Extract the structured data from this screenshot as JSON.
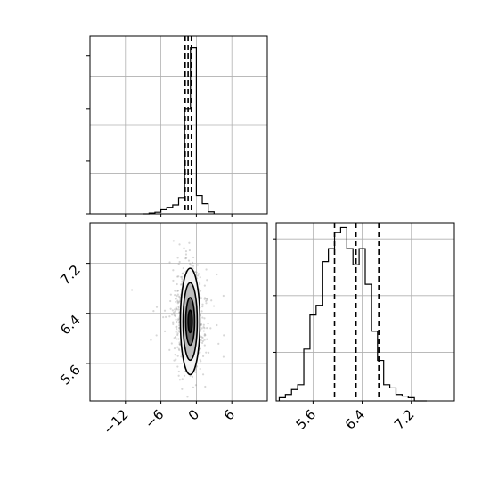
{
  "chart_data": [
    {
      "panel": "top-left",
      "type": "histogram",
      "title": "",
      "xlabel": "",
      "ylabel": "",
      "xlim": [
        -18,
        12
      ],
      "ylim": [
        0,
        0.44
      ],
      "shared_x_ticks": [
        -12,
        -6,
        0,
        6
      ],
      "tick_labels_shown": false,
      "grid": true,
      "bin_edges": [
        -9,
        -8,
        -7,
        -6,
        -5,
        -4,
        -3,
        -2,
        -1,
        0,
        1,
        2,
        3
      ],
      "values": [
        0.0,
        0.002,
        0.004,
        0.01,
        0.016,
        0.022,
        0.04,
        0.26,
        0.41,
        0.045,
        0.025,
        0.005
      ],
      "quantile_lines": [
        -1.9,
        -1.4,
        -0.85
      ],
      "line_color": "#000000"
    },
    {
      "panel": "bottom-left",
      "type": "scatter",
      "title": "",
      "xlabel": "",
      "ylabel": "",
      "xlim": [
        -18,
        12
      ],
      "ylim": [
        5.0,
        7.85
      ],
      "x_ticks": [
        "−12",
        "−6",
        "0",
        "6"
      ],
      "x_tick_values": [
        -12,
        -6,
        0,
        6
      ],
      "y_ticks": [
        "5.6",
        "6.4",
        "7.2"
      ],
      "y_tick_values": [
        5.6,
        6.4,
        7.2
      ],
      "grid": true,
      "center": [
        -1.2,
        6.3
      ],
      "spread": [
        1.1,
        0.37
      ],
      "point_color": "#8c8c8c",
      "contour_levels": [
        {
          "rx": 3.3,
          "ry": 0.85,
          "fill": "#f3f3f3"
        },
        {
          "rx": 2.4,
          "ry": 0.62,
          "fill": "#bdbdbd"
        },
        {
          "rx": 1.5,
          "ry": 0.38,
          "fill": "#6c6c6c"
        },
        {
          "rx": 0.7,
          "ry": 0.18,
          "fill": "#1c1c1c"
        }
      ]
    },
    {
      "panel": "bottom-right",
      "type": "histogram",
      "title": "",
      "xlabel": "",
      "ylabel": "",
      "xlim": [
        4.95,
        7.85
      ],
      "ylim": [
        0,
        0.11
      ],
      "x_ticks": [
        "5.6",
        "6.4",
        "7.2"
      ],
      "x_tick_values": [
        5.6,
        6.4,
        7.2
      ],
      "grid": true,
      "bin_edges": [
        5.0,
        5.1,
        5.2,
        5.3,
        5.4,
        5.5,
        5.6,
        5.7,
        5.8,
        5.9,
        6.0,
        6.1,
        6.2,
        6.3,
        6.4,
        6.5,
        6.6,
        6.7,
        6.8,
        6.9,
        7.0,
        7.1,
        7.2,
        7.3,
        7.4
      ],
      "values": [
        0.002,
        0.004,
        0.007,
        0.01,
        0.032,
        0.053,
        0.059,
        0.086,
        0.094,
        0.104,
        0.107,
        0.094,
        0.084,
        0.094,
        0.072,
        0.043,
        0.025,
        0.01,
        0.008,
        0.004,
        0.003,
        0.002,
        0.0,
        0.0
      ],
      "quantile_lines": [
        5.9,
        6.25,
        6.62
      ],
      "line_color": "#000000"
    }
  ]
}
